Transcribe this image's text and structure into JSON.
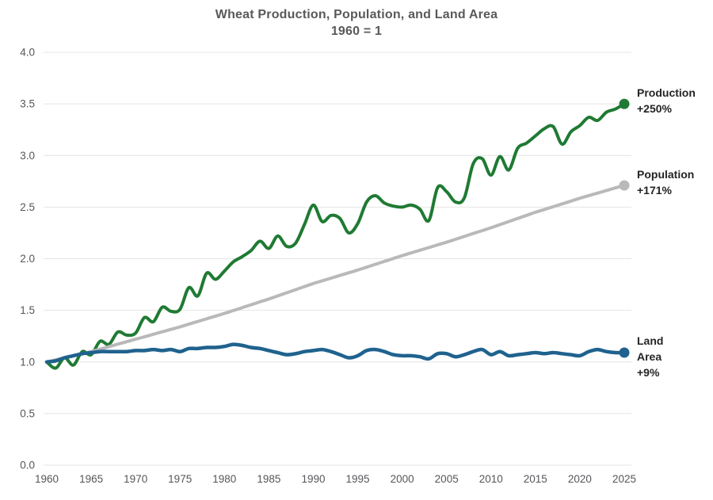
{
  "chart": {
    "title": "Wheat Production, Population, and Land Area",
    "subtitle": "1960 = 1"
  },
  "annotations": {
    "production": {
      "line1": "Production",
      "line2": "+250%"
    },
    "population": {
      "line1": "Population",
      "line2": "+171%"
    },
    "land_area": {
      "line1": "Land",
      "line2": "Area",
      "line3": "+9%"
    }
  },
  "style": {
    "grid_color": "#e4e4e4",
    "tick_color": "#55565a",
    "title_color": "#58595b",
    "annotation_color": "#242424",
    "background": "#ffffff"
  },
  "chart_data": {
    "type": "line",
    "title": "Wheat Production, Population, and Land Area",
    "subtitle": "1960 = 1",
    "xlabel": "",
    "ylabel": "",
    "xlim": [
      1960,
      2025
    ],
    "ylim": [
      0,
      4.0
    ],
    "grid": "horizontal",
    "legend_position": "right-end-labels",
    "y_ticks": [
      0,
      0.5,
      1.0,
      1.5,
      2.0,
      2.5,
      3.0,
      3.5,
      4.0
    ],
    "x_ticks": [
      1960,
      1965,
      1970,
      1975,
      1980,
      1985,
      1990,
      1995,
      2000,
      2005,
      2010,
      2015,
      2020,
      2025
    ],
    "x": [
      1960,
      1961,
      1962,
      1963,
      1964,
      1965,
      1966,
      1967,
      1968,
      1969,
      1970,
      1971,
      1972,
      1973,
      1974,
      1975,
      1976,
      1977,
      1978,
      1979,
      1980,
      1981,
      1982,
      1983,
      1984,
      1985,
      1986,
      1987,
      1988,
      1989,
      1990,
      1991,
      1992,
      1993,
      1994,
      1995,
      1996,
      1997,
      1998,
      1999,
      2000,
      2001,
      2002,
      2003,
      2004,
      2005,
      2006,
      2007,
      2008,
      2009,
      2010,
      2011,
      2012,
      2013,
      2014,
      2015,
      2016,
      2017,
      2018,
      2019,
      2020,
      2021,
      2022,
      2023,
      2024,
      2025
    ],
    "series": [
      {
        "name": "Production",
        "color": "#1f7a33",
        "end_label": "Production +250%",
        "end_value": 3.5,
        "values": [
          1.0,
          0.94,
          1.04,
          0.97,
          1.1,
          1.07,
          1.2,
          1.17,
          1.29,
          1.26,
          1.28,
          1.43,
          1.39,
          1.53,
          1.49,
          1.51,
          1.72,
          1.64,
          1.86,
          1.8,
          1.88,
          1.97,
          2.02,
          2.08,
          2.17,
          2.1,
          2.22,
          2.12,
          2.15,
          2.33,
          2.52,
          2.36,
          2.42,
          2.39,
          2.25,
          2.34,
          2.55,
          2.61,
          2.54,
          2.51,
          2.5,
          2.52,
          2.48,
          2.37,
          2.69,
          2.65,
          2.55,
          2.59,
          2.92,
          2.97,
          2.81,
          2.99,
          2.86,
          3.07,
          3.12,
          3.19,
          3.26,
          3.28,
          3.11,
          3.23,
          3.29,
          3.37,
          3.34,
          3.42,
          3.45,
          3.5
        ]
      },
      {
        "name": "Population",
        "color": "#b9b9ba",
        "end_label": "Population +171%",
        "end_value": 2.71,
        "values": [
          1.0,
          1.02,
          1.04,
          1.06,
          1.08,
          1.1,
          1.124,
          1.148,
          1.172,
          1.196,
          1.22,
          1.244,
          1.268,
          1.292,
          1.316,
          1.34,
          1.366,
          1.392,
          1.418,
          1.444,
          1.47,
          1.498,
          1.526,
          1.554,
          1.582,
          1.61,
          1.64,
          1.67,
          1.7,
          1.73,
          1.76,
          1.786,
          1.812,
          1.838,
          1.864,
          1.89,
          1.918,
          1.946,
          1.974,
          2.002,
          2.03,
          2.056,
          2.082,
          2.108,
          2.134,
          2.16,
          2.188,
          2.216,
          2.244,
          2.272,
          2.3,
          2.33,
          2.36,
          2.39,
          2.42,
          2.45,
          2.477,
          2.504,
          2.531,
          2.558,
          2.586,
          2.611,
          2.636,
          2.661,
          2.686,
          2.71
        ]
      },
      {
        "name": "Land Area",
        "color": "#1f628e",
        "end_label": "Land Area +9%",
        "end_value": 1.09,
        "values": [
          1.0,
          1.01,
          1.04,
          1.06,
          1.08,
          1.09,
          1.1,
          1.1,
          1.1,
          1.1,
          1.11,
          1.11,
          1.12,
          1.11,
          1.12,
          1.1,
          1.13,
          1.13,
          1.14,
          1.14,
          1.15,
          1.17,
          1.16,
          1.14,
          1.13,
          1.11,
          1.09,
          1.07,
          1.08,
          1.1,
          1.11,
          1.12,
          1.1,
          1.07,
          1.04,
          1.06,
          1.11,
          1.12,
          1.1,
          1.07,
          1.06,
          1.06,
          1.05,
          1.03,
          1.08,
          1.08,
          1.05,
          1.07,
          1.1,
          1.12,
          1.07,
          1.1,
          1.06,
          1.07,
          1.08,
          1.09,
          1.08,
          1.09,
          1.08,
          1.07,
          1.06,
          1.1,
          1.12,
          1.1,
          1.09,
          1.09
        ]
      }
    ]
  }
}
